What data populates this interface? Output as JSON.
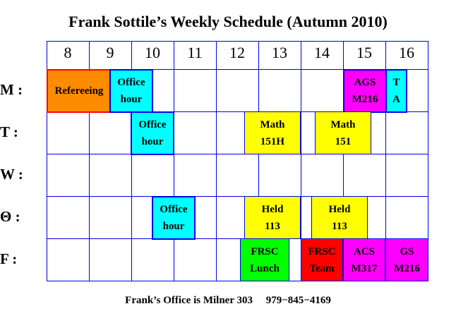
{
  "title": "Frank Sottile’s Weekly Schedule (Autumn 2010)",
  "hours": [
    "8",
    "9",
    "10",
    "11",
    "12",
    "13",
    "14",
    "15",
    "16"
  ],
  "days": [
    "M :",
    "T :",
    "W :",
    "Θ  :",
    "F :"
  ],
  "blocks": [
    {
      "label": "Refereeing",
      "fill": "#ff8c00",
      "border": "#ff0000"
    },
    {
      "label": "Office\nhour",
      "fill": "#00ffff",
      "border": "#0000ee"
    },
    {
      "label": "AGS\nM216",
      "fill": "#ff00ff",
      "border": "#0000ee"
    },
    {
      "label": "T\nA",
      "fill": "#00ffff",
      "border": "#0000ee"
    },
    {
      "label": "Office\nhour",
      "fill": "#00ffff",
      "border": "#0000ee"
    },
    {
      "label": "Math\n151H",
      "fill": "#ffff00",
      "border": "#0000ee"
    },
    {
      "label": "Math\n151",
      "fill": "#ffff00",
      "border": "#0000ee"
    },
    {
      "label": "Office\nhour",
      "fill": "#00ffff",
      "border": "#0000ee"
    },
    {
      "label": "Held\n113",
      "fill": "#ffff00",
      "border": "#0000ee"
    },
    {
      "label": "Held\n113",
      "fill": "#ffff00",
      "border": "#0000ee"
    },
    {
      "label": "FRSC\nLunch",
      "fill": "#00ff00",
      "border": "#0000ee"
    },
    {
      "label": "FRSC\nTeam",
      "fill": "#ff0000",
      "border": "#0000ee"
    },
    {
      "label": "ACS\nM317",
      "fill": "#ff00ff",
      "border": "#0000ee"
    },
    {
      "label": "GS\nM216",
      "fill": "#ff00ff",
      "border": "#0000ee"
    }
  ],
  "footer": "Frank’s Office is Milner 303     979−845−4169"
}
